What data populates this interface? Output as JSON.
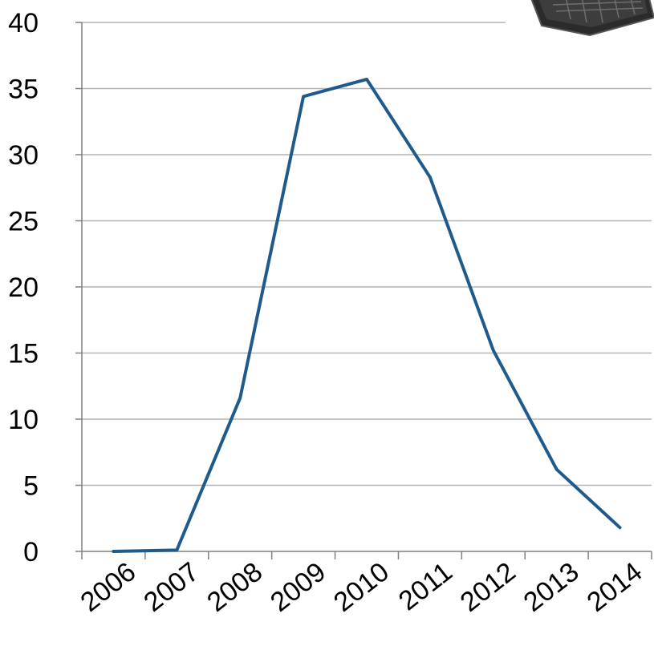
{
  "chart_data": {
    "type": "line",
    "title": "",
    "xlabel": "",
    "ylabel": "",
    "categories": [
      "2006",
      "2007",
      "2008",
      "2009",
      "2010",
      "2011",
      "2012",
      "2013",
      "2014"
    ],
    "series": [
      {
        "values": [
          0,
          0.1,
          11.6,
          34.4,
          35.7,
          28.3,
          15.2,
          6.2,
          1.8
        ]
      }
    ],
    "ylim": [
      0,
      40
    ],
    "yticks": [
      0,
      5,
      10,
      15,
      20,
      25,
      30,
      35,
      40
    ],
    "grid": true,
    "legend": "none",
    "line_color": "#1f5a8c",
    "grid_color": "#b3b3b3"
  },
  "decoration": {
    "icon": "keyboard-icon"
  }
}
